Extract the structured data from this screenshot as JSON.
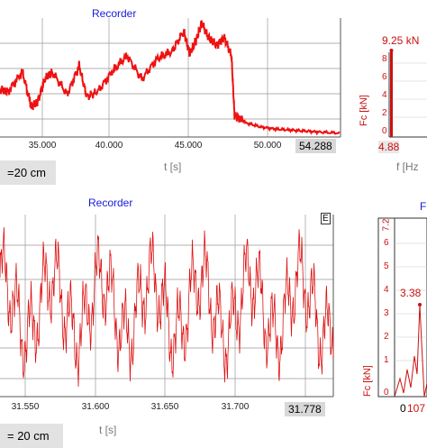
{
  "top_panel": {
    "title": "Recorder",
    "xlabel": "t [s]",
    "current_value": "54.288",
    "info_box": "=20 cm",
    "colors": {
      "line": "#ee1111",
      "grid": "#999999"
    }
  },
  "top_spectrum": {
    "peak_label": "9.25 kN",
    "ylabel": "Fc [kN]",
    "xlabel": "f [Hz",
    "yticks": [
      "8",
      "6",
      "4",
      "2",
      "0"
    ],
    "x_value": "4.88"
  },
  "bottom_panel": {
    "title": "Recorder",
    "xlabel": "t [s]",
    "current_value": "31.778",
    "info_box": "= 20 cm",
    "corner_label": "E"
  },
  "bottom_spectrum": {
    "title_fragment": "F",
    "ymax_label": "7.2",
    "peak_label": "3.38",
    "ylabel": "Fc [kN]",
    "yticks": [
      "6",
      "5",
      "4",
      "3",
      "2",
      "1",
      "0"
    ],
    "x_value": "0",
    "x_value2": "107"
  },
  "chart_data": [
    {
      "type": "line",
      "title": "Recorder",
      "xlabel": "t [s]",
      "ylabel": "",
      "xticks": [
        "35.000",
        "40.000",
        "45.000",
        "50.000"
      ],
      "xlim": [
        31.5,
        54.3
      ],
      "x": [
        31.5,
        32.0,
        33.0,
        33.6,
        34.0,
        34.5,
        35.0,
        36.0,
        36.8,
        37.3,
        38.0,
        39.0,
        40.0,
        41.0,
        42.0,
        43.0,
        43.8,
        44.2,
        44.6,
        45.0,
        45.5,
        46.0,
        46.5,
        47.0,
        47.2,
        47.6,
        48.0,
        49.0,
        50.0,
        51.0,
        52.0,
        53.0,
        54.3
      ],
      "values": [
        0.45,
        0.42,
        0.62,
        0.28,
        0.32,
        0.55,
        0.62,
        0.4,
        0.68,
        0.38,
        0.42,
        0.62,
        0.78,
        0.55,
        0.75,
        0.82,
        1.02,
        0.8,
        0.92,
        1.1,
        0.95,
        0.88,
        0.96,
        0.78,
        0.2,
        0.16,
        0.12,
        0.08,
        0.06,
        0.05,
        0.04,
        0.03,
        0.02
      ]
    },
    {
      "type": "bar",
      "title": "",
      "ylabel": "Fc [kN]",
      "xlabel": "f [Hz",
      "yticks": [
        0,
        2,
        4,
        6,
        8
      ],
      "ylim": [
        0,
        9.5
      ],
      "peak": {
        "x": 4.88,
        "y": 9.25
      }
    },
    {
      "type": "line",
      "title": "Recorder",
      "xlabel": "t [s]",
      "ylabel": "",
      "xticks": [
        "31.550",
        "31.600",
        "31.650",
        "31.700"
      ],
      "xlim": [
        31.525,
        31.778
      ]
    },
    {
      "type": "line",
      "title": "",
      "ylabel": "Fc [kN]",
      "yticks": [
        0,
        1,
        2,
        3,
        4,
        5,
        6
      ],
      "ylim": [
        0,
        7.2
      ],
      "peak": {
        "x": 107,
        "y": 3.38
      }
    }
  ]
}
